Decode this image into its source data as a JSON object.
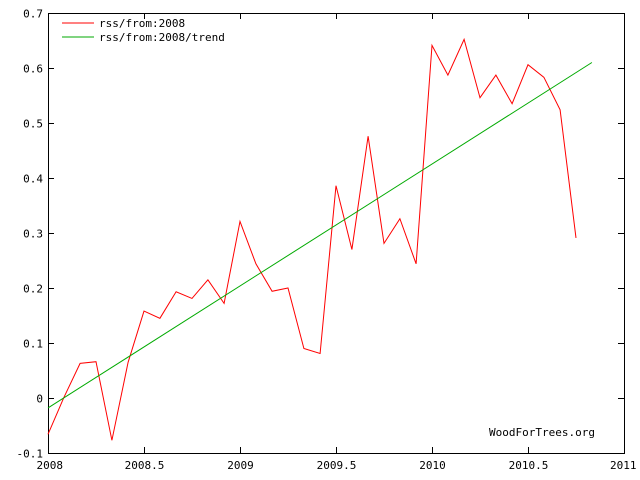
{
  "chart_data": {
    "type": "line",
    "title": "",
    "xlabel": "",
    "ylabel": "",
    "xlim": [
      2008,
      2011
    ],
    "ylim": [
      -0.1,
      0.7
    ],
    "x_ticks": [
      2008,
      2008.5,
      2009,
      2009.5,
      2010,
      2010.5,
      2011
    ],
    "x_tick_labels": [
      "2008",
      "2008.5",
      "2009",
      "2009.5",
      "2010",
      "2010.5",
      "2011"
    ],
    "y_ticks": [
      -0.1,
      0,
      0.1,
      0.2,
      0.3,
      0.4,
      0.5,
      0.6,
      0.7
    ],
    "y_tick_labels": [
      "-0.1",
      "0",
      "0.1",
      "0.2",
      "0.3",
      "0.4",
      "0.5",
      "0.6",
      "0.7"
    ],
    "grid": false,
    "legend_position": "top-left",
    "watermark": "WoodForTrees.org",
    "series": [
      {
        "name": "rss/from:2008",
        "color": "#ff0000",
        "x": [
          2008.0,
          2008.083,
          2008.167,
          2008.25,
          2008.333,
          2008.417,
          2008.5,
          2008.583,
          2008.667,
          2008.75,
          2008.833,
          2008.917,
          2009.0,
          2009.083,
          2009.167,
          2009.25,
          2009.333,
          2009.417,
          2009.5,
          2009.583,
          2009.667,
          2009.75,
          2009.833,
          2009.917,
          2010.0,
          2010.083,
          2010.167,
          2010.25,
          2010.333,
          2010.417,
          2010.5,
          2010.583,
          2010.667,
          2010.75
        ],
        "values": [
          -0.066,
          0.001,
          0.063,
          0.066,
          -0.077,
          0.065,
          0.158,
          0.145,
          0.193,
          0.181,
          0.215,
          0.172,
          0.321,
          0.244,
          0.194,
          0.2,
          0.09,
          0.081,
          0.386,
          0.27,
          0.476,
          0.281,
          0.326,
          0.244,
          0.641,
          0.587,
          0.652,
          0.546,
          0.587,
          0.535,
          0.606,
          0.583,
          0.524,
          0.291
        ]
      },
      {
        "name": "rss/from:2008/trend",
        "color": "#00aa00",
        "x": [
          2008.0,
          2010.833
        ],
        "values": [
          -0.018,
          0.61
        ]
      }
    ]
  }
}
